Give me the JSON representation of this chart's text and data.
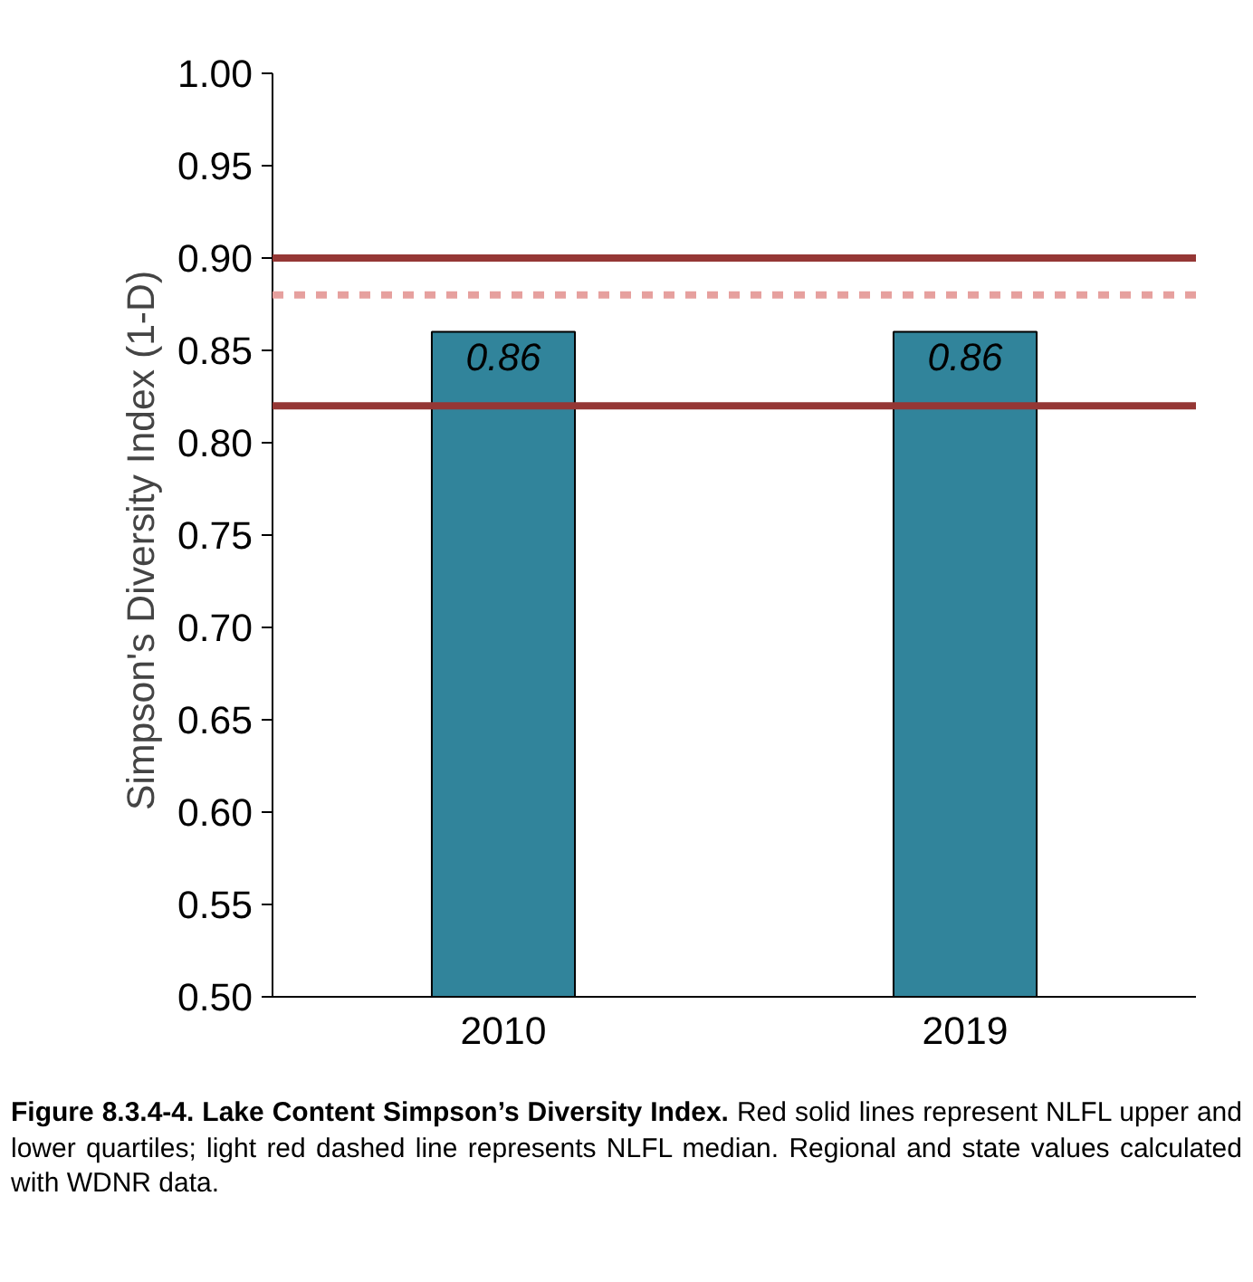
{
  "chart_data": {
    "type": "bar",
    "title": "Figure 8.3.4-4. Lake Content Simpson’s Diversity Index.",
    "annotations": [
      "Red solid lines represent NLFL upper and lower quartiles; light red dashed line represents NLFL median. Regional and state values calculated with WDNR data."
    ],
    "ylabel": "Simpson's Diversity Index  (1-D)",
    "categories": [
      "2010",
      "2019"
    ],
    "values": [
      0.86,
      0.86
    ],
    "color": "#31849b",
    "data_labels": true,
    "ylim": [
      0.5,
      1.0
    ],
    "yticks": [
      {
        "value": 0.5,
        "label": "0.50"
      },
      {
        "value": 0.55,
        "label": "0.55"
      },
      {
        "value": 0.6,
        "label": "0.60"
      },
      {
        "value": 0.65,
        "label": "0.65"
      },
      {
        "value": 0.7,
        "label": "0.70"
      },
      {
        "value": 0.75,
        "label": "0.75"
      },
      {
        "value": 0.8,
        "label": "0.80"
      },
      {
        "value": 0.85,
        "label": "0.85"
      },
      {
        "value": 0.9,
        "label": "0.90"
      },
      {
        "value": 0.95,
        "label": "0.95"
      },
      {
        "value": 1.0,
        "label": "1.00"
      }
    ],
    "ref_lines": [
      {
        "axis": "y",
        "value": 0.9,
        "color": "#953735",
        "line_style": "solid"
      },
      {
        "axis": "y",
        "value": 0.88,
        "color": "#e6a09e",
        "line_style": "dashed"
      },
      {
        "axis": "y",
        "value": 0.82,
        "color": "#953735",
        "line_style": "solid"
      }
    ],
    "grid": false
  }
}
